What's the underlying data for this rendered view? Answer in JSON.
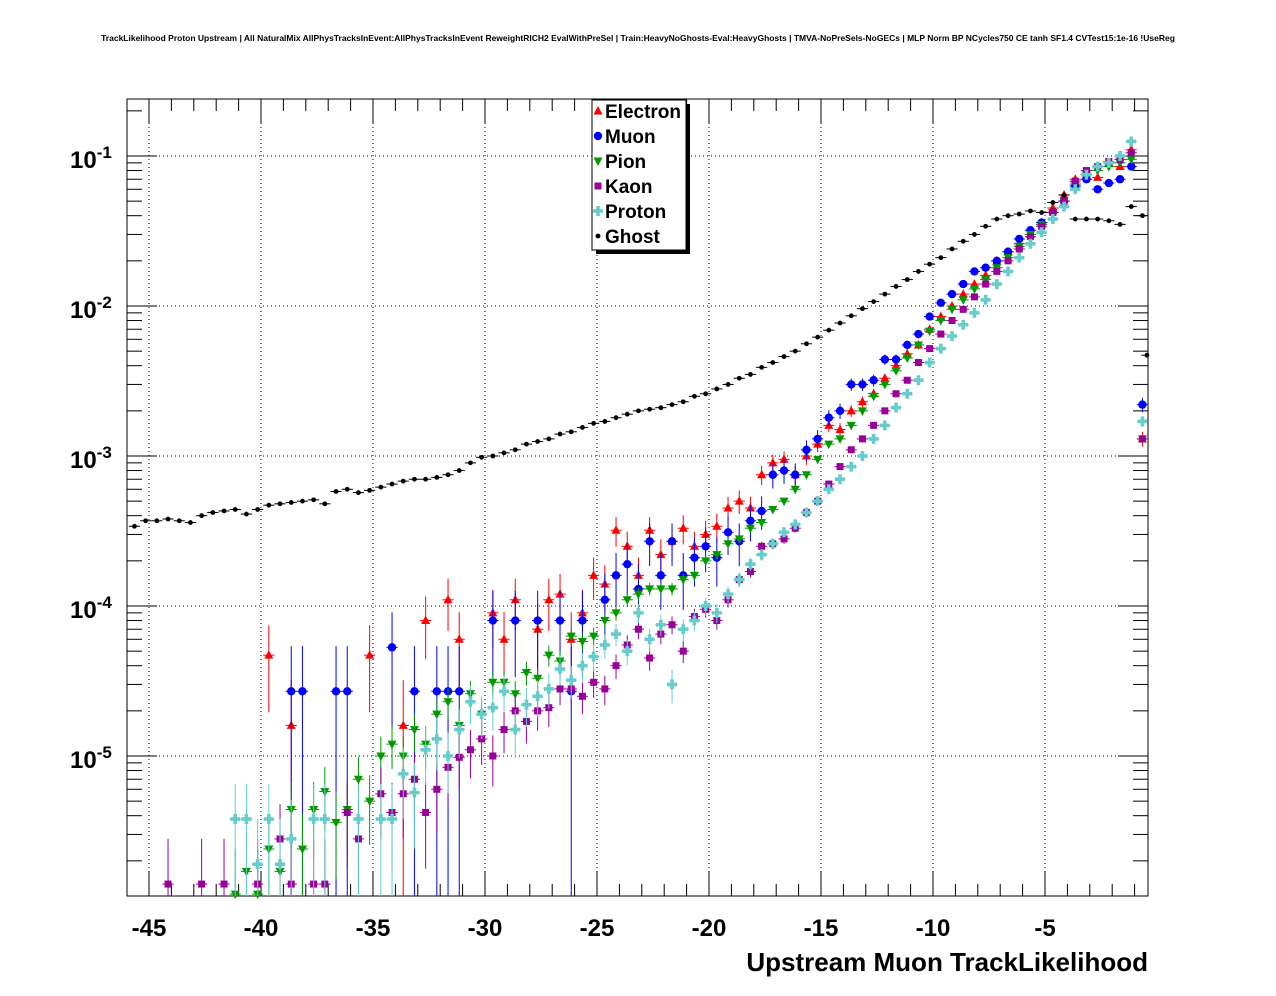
{
  "chart_data": {
    "type": "scatter",
    "title": "TrackLikelihood Proton Upstream | All NaturalMix AllPhysTracksInEvent:AllPhysTracksInEvent ReweightRICH2 EvalWithPreSel | Train:HeavyNoGhosts-Eval:HeavyGhosts | TMVA-NoPreSels-NoGECs | MLP Norm BP NCycles750 CE tanh SF1.4 CVTest15:1e-16 !UseReg",
    "xlabel": "Upstream Muon TrackLikelihood",
    "ylabel": "",
    "xlim": [
      -46,
      -0.4
    ],
    "ylim": [
      1.17e-06,
      0.24
    ],
    "yscale": "log",
    "grid": true,
    "legend_position": "top-center",
    "x_ticks": [
      "-45",
      "-40",
      "-35",
      "-30",
      "-25",
      "-20",
      "-15",
      "-10",
      "-5"
    ],
    "x_tick_values": [
      -45,
      -40,
      -35,
      -30,
      -25,
      -20,
      -15,
      -10,
      -5
    ],
    "y_ticks": [
      {
        "base": "10",
        "exp": "-1",
        "value": 0.1
      },
      {
        "base": "10",
        "exp": "-2",
        "value": 0.01
      },
      {
        "base": "10",
        "exp": "-3",
        "value": 0.001
      },
      {
        "base": "10",
        "exp": "-4",
        "value": 0.0001
      },
      {
        "base": "10",
        "exp": "-5",
        "value": 1e-05
      }
    ],
    "bin_step": 0.5,
    "series": [
      {
        "name": "Electron",
        "marker": "triangle-up",
        "color": "#ff0000",
        "x_start": -44.15,
        "values": [
          null,
          null,
          null,
          null,
          null,
          null,
          null,
          null,
          null,
          4.7e-05,
          null,
          1.6e-05,
          null,
          null,
          null,
          null,
          null,
          null,
          4.7e-05,
          null,
          null,
          1.6e-05,
          null,
          8e-05,
          null,
          0.00011,
          6e-05,
          null,
          null,
          9e-05,
          6e-05,
          0.00011,
          null,
          7e-05,
          0.00011,
          0.00012,
          6e-05,
          9e-05,
          0.00016,
          0.00014,
          0.00032,
          0.00025,
          0.00016,
          0.00032,
          0.00022,
          0.00027,
          0.00033,
          0.00025,
          0.0003,
          0.00034,
          0.00045,
          0.0005,
          0.00045,
          0.00075,
          0.0009,
          0.00095,
          0.00075,
          0.001,
          0.0012,
          0.0016,
          0.0015,
          0.002,
          0.0023,
          0.0026,
          0.0033,
          0.004,
          0.0048,
          0.0055,
          0.007,
          0.0085,
          0.01,
          0.012,
          0.014,
          0.016,
          0.02,
          0.023,
          0.026,
          0.03,
          0.036,
          0.045,
          0.055,
          0.07,
          0.075,
          0.072,
          0.09,
          0.085,
          0.11,
          0.0013
        ]
      },
      {
        "name": "Muon",
        "marker": "circle",
        "color": "#0000ff",
        "x_start": -44.15,
        "values": [
          null,
          null,
          null,
          null,
          null,
          null,
          null,
          null,
          null,
          null,
          null,
          2.7e-05,
          2.7e-05,
          null,
          null,
          2.7e-05,
          2.7e-05,
          null,
          null,
          null,
          5.3e-05,
          null,
          2.7e-05,
          null,
          2.7e-05,
          2.7e-05,
          2.7e-05,
          null,
          null,
          8e-05,
          null,
          8e-05,
          null,
          8e-05,
          null,
          8e-05,
          2.7e-05,
          8e-05,
          null,
          0.00011,
          0.00016,
          0.00019,
          0.00013,
          0.00027,
          0.00016,
          0.00027,
          0.00016,
          0.00021,
          0.00025,
          0.00021,
          0.00031,
          0.00027,
          0.00037,
          0.00043,
          0.00075,
          0.0008,
          0.00075,
          0.0011,
          0.0013,
          0.0018,
          0.002,
          0.003,
          0.003,
          0.0032,
          0.0044,
          0.0044,
          0.0055,
          0.0065,
          0.0085,
          0.0105,
          0.012,
          0.014,
          0.017,
          0.018,
          0.02,
          0.023,
          0.028,
          0.032,
          0.036,
          0.042,
          0.05,
          0.063,
          0.07,
          0.06,
          0.066,
          0.07,
          0.085,
          0.0022
        ]
      },
      {
        "name": "Pion",
        "marker": "triangle-down",
        "color": "#009900",
        "x_start": -44.15,
        "values": [
          null,
          null,
          null,
          null,
          null,
          null,
          1.2e-06,
          1.7e-06,
          1.2e-06,
          2.4e-06,
          1.7e-06,
          4.4e-06,
          2.4e-06,
          4.4e-06,
          5.8e-06,
          3.6e-06,
          4.4e-06,
          7e-06,
          5e-06,
          1e-05,
          1.2e-05,
          1e-05,
          1.5e-05,
          1.2e-05,
          1.9e-05,
          2.3e-05,
          1.6e-05,
          2.6e-05,
          1.9e-05,
          3.1e-05,
          3.1e-05,
          2.6e-05,
          3.6e-05,
          3.3e-05,
          4.7e-05,
          4.3e-05,
          6.3e-05,
          5.8e-05,
          6.3e-05,
          8e-05,
          9e-05,
          0.00011,
          0.00012,
          0.00013,
          0.00013,
          0.00013,
          0.00015,
          0.00016,
          0.0002,
          0.00022,
          0.00026,
          0.00028,
          0.00033,
          0.00036,
          0.00044,
          0.0005,
          0.0006,
          0.00075,
          0.00095,
          0.0012,
          0.0013,
          0.0016,
          0.002,
          0.0025,
          0.003,
          0.0037,
          0.0045,
          0.0055,
          0.0068,
          0.008,
          0.0095,
          0.011,
          0.013,
          0.015,
          0.018,
          0.021,
          0.025,
          0.03,
          0.035,
          0.042,
          0.05,
          0.065,
          0.075,
          0.08,
          0.085,
          0.09,
          0.095,
          0.0013
        ]
      },
      {
        "name": "Kaon",
        "marker": "square",
        "color": "#990099",
        "x_start": -44.15,
        "values": [
          1.4e-06,
          null,
          null,
          1.4e-06,
          null,
          1.4e-06,
          null,
          null,
          1.4e-06,
          null,
          2.8e-06,
          1.4e-06,
          null,
          1.4e-06,
          1.4e-06,
          null,
          4.2e-06,
          2.8e-06,
          null,
          5.6e-06,
          4.2e-06,
          5.6e-06,
          7e-06,
          4.2e-06,
          6e-06,
          8.4e-06,
          9.8e-06,
          1.1e-05,
          1.3e-05,
          1e-05,
          1.5e-05,
          2e-05,
          1.7e-05,
          2e-05,
          2.1e-05,
          2.8e-05,
          2.8e-05,
          2.5e-05,
          3.1e-05,
          2.8e-05,
          4e-05,
          5.5e-05,
          7e-05,
          4.5e-05,
          6.5e-05,
          7.5e-05,
          5e-05,
          8.5e-05,
          9.5e-05,
          8e-05,
          0.00011,
          0.00015,
          0.00017,
          0.00025,
          0.00026,
          0.00028,
          0.00033,
          0.00042,
          0.0005,
          0.00065,
          0.00085,
          0.0011,
          0.0013,
          0.0016,
          0.002,
          0.0026,
          0.0032,
          0.0042,
          0.0052,
          0.0065,
          0.008,
          0.0095,
          0.0115,
          0.014,
          0.017,
          0.02,
          0.024,
          0.029,
          0.034,
          0.042,
          0.05,
          0.068,
          0.08,
          0.085,
          0.092,
          0.095,
          0.105,
          0.0013
        ]
      },
      {
        "name": "Proton",
        "marker": "cross",
        "color": "#66cccc",
        "x_start": -44.15,
        "values": [
          null,
          null,
          null,
          null,
          null,
          null,
          3.8e-06,
          3.8e-06,
          1.9e-06,
          3.8e-06,
          1.9e-06,
          2.8e-06,
          null,
          3.8e-06,
          3.8e-06,
          null,
          null,
          3.8e-06,
          null,
          3.8e-06,
          3.8e-06,
          7.6e-06,
          5.7e-06,
          1.1e-05,
          1.3e-05,
          1e-05,
          1.5e-05,
          2.3e-05,
          1.9e-05,
          2.1e-05,
          2.7e-05,
          1.5e-05,
          2.2e-05,
          2.5e-05,
          2.8e-05,
          3.8e-05,
          3.2e-05,
          4e-05,
          4.6e-05,
          5.5e-05,
          6.5e-05,
          5e-05,
          9e-05,
          6e-05,
          7.5e-05,
          3e-05,
          7e-05,
          8e-05,
          0.0001,
          9e-05,
          0.00012,
          0.00015,
          0.00019,
          0.00022,
          0.00026,
          0.00031,
          0.00035,
          0.00042,
          0.0005,
          0.0006,
          0.0007,
          0.00085,
          0.001,
          0.0013,
          0.0016,
          0.0021,
          0.0026,
          0.0032,
          0.0042,
          0.0052,
          0.0063,
          0.0075,
          0.009,
          0.011,
          0.014,
          0.017,
          0.021,
          0.026,
          0.031,
          0.038,
          0.046,
          0.06,
          0.075,
          0.085,
          0.09,
          0.1,
          0.125,
          0.0017
        ]
      },
      {
        "name": "Ghost",
        "marker": "dot",
        "color": "#000000",
        "x_start": -45.65,
        "values": [
          0.00034,
          0.00037,
          0.00037,
          0.00038,
          0.00037,
          0.00036,
          0.0004,
          0.00042,
          0.00043,
          0.00044,
          0.00041,
          0.00044,
          0.00047,
          0.00048,
          0.00049,
          0.0005,
          0.00051,
          0.00048,
          0.00058,
          0.0006,
          0.00057,
          0.00059,
          0.00062,
          0.00065,
          0.00068,
          0.0007,
          0.0007,
          0.00072,
          0.00075,
          0.0008,
          0.0009,
          0.00098,
          0.001,
          0.00105,
          0.0011,
          0.0012,
          0.00125,
          0.0013,
          0.0014,
          0.00145,
          0.00155,
          0.00165,
          0.0017,
          0.0018,
          0.0019,
          0.002,
          0.00205,
          0.0021,
          0.0022,
          0.0023,
          0.0025,
          0.0026,
          0.0028,
          0.003,
          0.0033,
          0.0035,
          0.0039,
          0.0042,
          0.0046,
          0.005,
          0.0056,
          0.0062,
          0.0069,
          0.0077,
          0.0086,
          0.0096,
          0.0107,
          0.012,
          0.0135,
          0.015,
          0.017,
          0.019,
          0.021,
          0.024,
          0.027,
          0.03,
          0.034,
          0.038,
          0.04,
          0.041,
          0.043,
          0.042,
          0.049,
          0.055,
          0.038,
          0.038,
          0.038,
          0.037,
          0.035,
          0.046,
          0.04,
          0.0047
        ]
      }
    ]
  }
}
